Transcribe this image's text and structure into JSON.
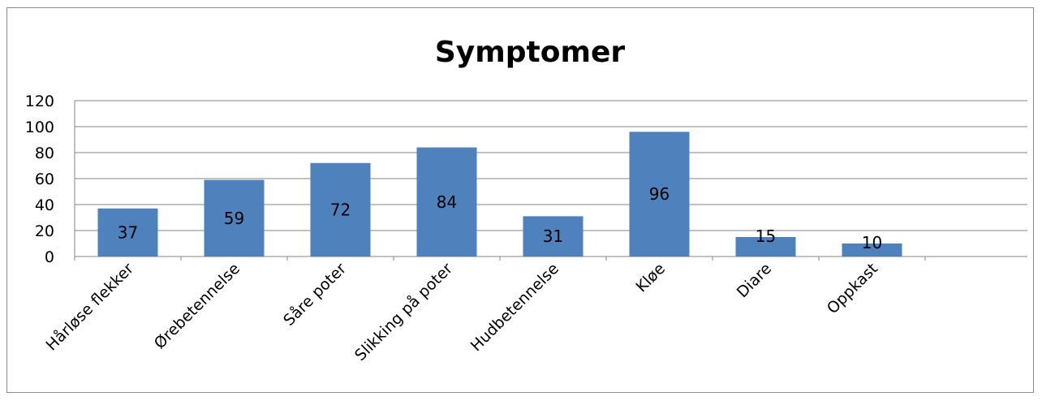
{
  "chart_data": {
    "type": "bar",
    "title": "Symptomer",
    "xlabel": "",
    "ylabel": "",
    "categories": [
      "Hårløse flekker",
      "Ørebetennelse",
      "Såre poter",
      "Slikking på poter",
      "Hudbetennelse",
      "Kløe",
      "Diare",
      "Oppkast"
    ],
    "values": [
      37,
      59,
      72,
      84,
      31,
      96,
      15,
      10
    ],
    "ylim": [
      0,
      120
    ],
    "yticks": [
      "0",
      "20",
      "40",
      "60",
      "80",
      "100",
      "120"
    ],
    "grid": true,
    "legend": "none",
    "colors": {
      "bar": "#4f81bd",
      "grid": "#868686",
      "border": "#8c8c8c"
    }
  }
}
